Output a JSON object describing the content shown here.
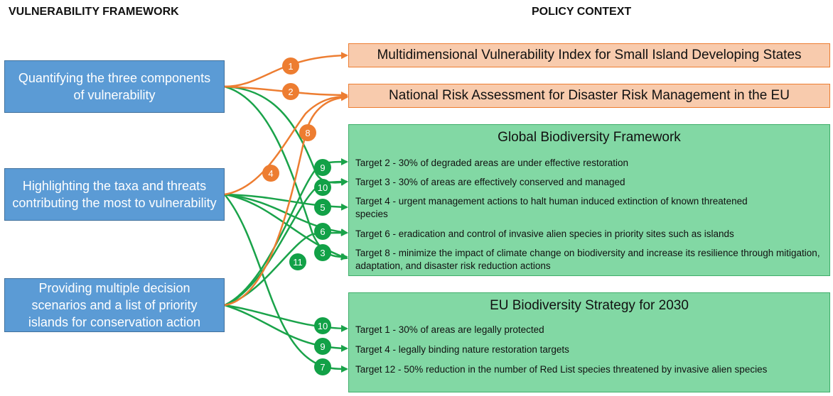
{
  "headers": {
    "left": "VULNERABILITY FRAMEWORK",
    "right": "POLICY CONTEXT"
  },
  "framework": [
    {
      "label": "Quantifying the three components of vulnerability"
    },
    {
      "label": "Highlighting the taxa and threats contributing the most to vulnerability"
    },
    {
      "label": "Providing multiple decision scenarios and a list of priority islands for conservation action"
    }
  ],
  "policies": {
    "mvi": "Multidimensional Vulnerability Index for Small Island Developing States",
    "nra": "National Risk Assessment for Disaster Risk Management in the EU",
    "gbf": {
      "title": "Global Biodiversity Framework",
      "targets": [
        "Target 2 - 30% of degraded areas are under effective restoration",
        "Target 3 - 30% of areas are effectively conserved and managed",
        "Target 4 - urgent management actions to halt human induced extinction of known threatened species",
        "Target 6 - eradication and control of invasive alien species in priority sites such as islands",
        "Target 8 - minimize the impact of climate change on biodiversity and increase its resilience through mitigation, adaptation, and disaster risk reduction actions"
      ]
    },
    "eu": {
      "title": "EU Biodiversity Strategy for 2030",
      "targets": [
        "Target 1 - 30% of areas are legally protected",
        "Target 4 - legally binding nature restoration targets",
        "Target 12 - 50% reduction in the number of Red List species threatened by invasive alien species"
      ]
    }
  },
  "badges": {
    "orange": [
      "1",
      "2",
      "4",
      "8"
    ],
    "green": [
      "9",
      "10",
      "5",
      "6",
      "3",
      "11",
      "10",
      "9",
      "7"
    ]
  },
  "colors": {
    "framework_fill": "#5b9bd5",
    "orange_link": "#ed7d31",
    "orange_box": "#f8cbad",
    "green_link": "#1aa34a",
    "green_badge": "#12a147",
    "green_panel": "#82d8a4"
  }
}
